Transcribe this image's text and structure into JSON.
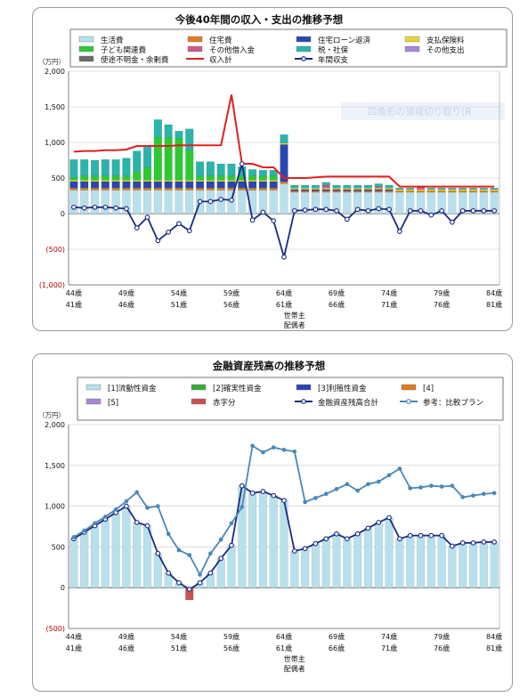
{
  "chart_data": [
    {
      "type": "bar",
      "title": "今後40年間の収入・支出の推移予想",
      "ylabel": "（万円）",
      "ylim": [
        -1000,
        2000
      ],
      "yticks": [
        "2,000",
        "1,500",
        "1,000",
        "500",
        "0",
        "(500)",
        "(1,000)"
      ],
      "yticks_values": [
        2000,
        1500,
        1000,
        500,
        0,
        -500,
        -1000
      ],
      "x_labels_top": [
        "44歳",
        "49歳",
        "54歳",
        "59歳",
        "64歳",
        "69歳",
        "74歳",
        "79歳",
        "84歳"
      ],
      "x_labels_bottom": [
        "41歳",
        "46歳",
        "51歳",
        "56歳",
        "61歳",
        "66歳",
        "71歳",
        "76歳",
        "81歳"
      ],
      "x_caption": [
        "世帯主",
        "配偶者"
      ],
      "watermark": "四角形の領域切り取り(R",
      "categories": [
        "44歳",
        "45歳",
        "46歳",
        "47歳",
        "48歳",
        "49歳",
        "50歳",
        "51歳",
        "52歳",
        "53歳",
        "54歳",
        "55歳",
        "56歳",
        "57歳",
        "58歳",
        "59歳",
        "60歳",
        "61歳",
        "62歳",
        "63歳",
        "64歳",
        "65歳",
        "66歳",
        "67歳",
        "68歳",
        "69歳",
        "70歳",
        "71歳",
        "72歳",
        "73歳",
        "74歳",
        "75歳",
        "76歳",
        "77歳",
        "78歳",
        "79歳",
        "80歳",
        "81歳",
        "82歳",
        "83歳",
        "84歳"
      ],
      "legend": [
        {
          "name": "生活費",
          "color": "#b8e0ec"
        },
        {
          "name": "住宅費",
          "color": "#e07b22"
        },
        {
          "name": "住宅ローン返済",
          "color": "#2846b4"
        },
        {
          "name": "支払保険料",
          "color": "#e8d438"
        },
        {
          "name": "子ども関連費",
          "color": "#2ec832"
        },
        {
          "name": "その他借入金",
          "color": "#c85a8c"
        },
        {
          "name": "税・社保",
          "color": "#2ab4aa"
        },
        {
          "name": "その他支出",
          "color": "#a586d8"
        },
        {
          "name": "使途不明金・余剰費",
          "color": "#6a6a6a"
        },
        {
          "name": "収入計",
          "color": "#e02020"
        },
        {
          "name": "年間収支",
          "color": "#1a2a80"
        }
      ],
      "series": [
        {
          "name": "生活費",
          "values": [
            330,
            330,
            330,
            330,
            330,
            330,
            330,
            330,
            330,
            330,
            330,
            330,
            330,
            330,
            330,
            330,
            330,
            330,
            330,
            330,
            420,
            300,
            300,
            300,
            300,
            300,
            300,
            300,
            300,
            300,
            300,
            300,
            300,
            300,
            300,
            300,
            300,
            300,
            300,
            300,
            300
          ]
        },
        {
          "name": "住宅費",
          "values": [
            30,
            30,
            30,
            30,
            30,
            30,
            30,
            30,
            30,
            30,
            30,
            30,
            30,
            30,
            30,
            30,
            30,
            30,
            30,
            30,
            30,
            20,
            20,
            20,
            20,
            20,
            20,
            20,
            20,
            20,
            20,
            20,
            20,
            20,
            20,
            20,
            20,
            20,
            20,
            20,
            20
          ]
        },
        {
          "name": "住宅ローン返済",
          "values": [
            90,
            90,
            90,
            90,
            90,
            90,
            90,
            90,
            90,
            90,
            90,
            90,
            90,
            90,
            90,
            90,
            90,
            90,
            90,
            90,
            520,
            20,
            20,
            20,
            20,
            20,
            20,
            20,
            20,
            20,
            20,
            0,
            0,
            0,
            0,
            0,
            0,
            0,
            0,
            0,
            0
          ]
        },
        {
          "name": "支払保険料",
          "values": [
            20,
            20,
            20,
            20,
            20,
            20,
            20,
            20,
            20,
            20,
            20,
            20,
            20,
            20,
            20,
            20,
            20,
            20,
            20,
            20,
            20,
            20,
            20,
            20,
            20,
            20,
            20,
            20,
            20,
            20,
            20,
            20,
            20,
            20,
            20,
            20,
            20,
            20,
            20,
            20,
            20
          ]
        },
        {
          "name": "子ども関連費",
          "values": [
            40,
            60,
            60,
            60,
            60,
            60,
            120,
            180,
            600,
            600,
            580,
            420,
            60,
            60,
            60,
            60,
            60,
            60,
            60,
            60,
            0,
            0,
            0,
            0,
            0,
            0,
            0,
            0,
            0,
            0,
            0,
            0,
            0,
            0,
            0,
            0,
            0,
            0,
            0,
            0,
            0
          ]
        },
        {
          "name": "その他借入金",
          "values": [
            0,
            0,
            0,
            0,
            0,
            0,
            0,
            0,
            0,
            0,
            0,
            0,
            0,
            0,
            0,
            0,
            0,
            0,
            0,
            0,
            0,
            0,
            0,
            0,
            40,
            0,
            0,
            0,
            0,
            20,
            0,
            0,
            0,
            30,
            0,
            0,
            0,
            0,
            0,
            0,
            0
          ]
        },
        {
          "name": "税・社保",
          "values": [
            250,
            230,
            220,
            230,
            230,
            250,
            290,
            300,
            250,
            180,
            110,
            300,
            200,
            200,
            170,
            170,
            130,
            90,
            80,
            80,
            120,
            40,
            40,
            40,
            40,
            40,
            40,
            40,
            40,
            40,
            40,
            20,
            20,
            20,
            20,
            20,
            20,
            20,
            20,
            20,
            20
          ]
        },
        {
          "name": "その他支出",
          "values": [
            0,
            0,
            0,
            0,
            0,
            0,
            0,
            0,
            0,
            0,
            0,
            0,
            0,
            0,
            0,
            0,
            0,
            0,
            0,
            0,
            0,
            0,
            0,
            0,
            0,
            0,
            0,
            0,
            0,
            0,
            0,
            0,
            0,
            0,
            0,
            0,
            0,
            0,
            0,
            0,
            0
          ]
        },
        {
          "name": "使途不明金・余剰費",
          "values": [
            0,
            0,
            0,
            0,
            0,
            0,
            0,
            0,
            0,
            0,
            0,
            0,
            0,
            0,
            0,
            0,
            0,
            0,
            0,
            0,
            0,
            0,
            0,
            0,
            0,
            0,
            0,
            0,
            0,
            0,
            0,
            0,
            0,
            0,
            0,
            0,
            0,
            0,
            0,
            0,
            0
          ]
        },
        {
          "name": "収入計",
          "kind": "line",
          "values": [
            870,
            880,
            880,
            890,
            890,
            900,
            950,
            950,
            950,
            950,
            960,
            960,
            960,
            960,
            960,
            1670,
            700,
            700,
            650,
            650,
            500,
            500,
            500,
            510,
            520,
            520,
            520,
            520,
            520,
            520,
            520,
            380,
            380,
            380,
            380,
            380,
            380,
            380,
            380,
            380,
            380
          ]
        },
        {
          "name": "年間収支",
          "kind": "line",
          "values": [
            90,
            80,
            90,
            90,
            80,
            70,
            -200,
            -50,
            -380,
            -260,
            -140,
            -240,
            170,
            170,
            200,
            190,
            700,
            -90,
            20,
            -100,
            -610,
            40,
            50,
            60,
            60,
            40,
            -80,
            60,
            40,
            70,
            60,
            -250,
            40,
            40,
            -20,
            40,
            -120,
            40,
            40,
            40,
            40
          ]
        }
      ]
    },
    {
      "type": "bar",
      "title": "金融資産残高の推移予想",
      "ylabel": "（万円）",
      "ylim": [
        -500,
        2000
      ],
      "yticks": [
        "2,000",
        "1,500",
        "1,000",
        "500",
        "0",
        "(500)"
      ],
      "yticks_values": [
        2000,
        1500,
        1000,
        500,
        0,
        -500
      ],
      "x_labels_top": [
        "44歳",
        "49歳",
        "54歳",
        "59歳",
        "64歳",
        "69歳",
        "74歳",
        "79歳",
        "84歳"
      ],
      "x_labels_bottom": [
        "41歳",
        "46歳",
        "51歳",
        "56歳",
        "61歳",
        "66歳",
        "71歳",
        "76歳",
        "81歳"
      ],
      "x_caption": [
        "世帯主",
        "配偶者"
      ],
      "categories": [
        "44歳",
        "45歳",
        "46歳",
        "47歳",
        "48歳",
        "49歳",
        "50歳",
        "51歳",
        "52歳",
        "53歳",
        "54歳",
        "55歳",
        "56歳",
        "57歳",
        "58歳",
        "59歳",
        "60歳",
        "61歳",
        "62歳",
        "63歳",
        "64歳",
        "65歳",
        "66歳",
        "67歳",
        "68歳",
        "69歳",
        "70歳",
        "71歳",
        "72歳",
        "73歳",
        "74歳",
        "75歳",
        "76歳",
        "77歳",
        "78歳",
        "79歳",
        "80歳",
        "81歳",
        "82歳",
        "83歳",
        "84歳"
      ],
      "legend": [
        {
          "name": "[1]流動性資金",
          "color": "#b8e0ec"
        },
        {
          "name": "[2]確実性資金",
          "color": "#3aaa3a"
        },
        {
          "name": "[3]利殖性資金",
          "color": "#2846b4"
        },
        {
          "name": "[4]",
          "color": "#e07b22"
        },
        {
          "name": "[5]",
          "color": "#a586d8"
        },
        {
          "name": "赤字分",
          "color": "#c85050"
        },
        {
          "name": "金融資産残高合計",
          "color": "#1a2a80"
        },
        {
          "name": "参考：比較プラン",
          "color": "#4a88b8"
        }
      ],
      "series": [
        {
          "name": "[1]流動性資金",
          "values": [
            600,
            680,
            760,
            840,
            920,
            1000,
            800,
            760,
            420,
            180,
            60,
            0,
            60,
            180,
            360,
            520,
            1250,
            1160,
            1180,
            1130,
            1070,
            450,
            480,
            540,
            600,
            660,
            600,
            660,
            730,
            800,
            860,
            600,
            640,
            640,
            640,
            640,
            510,
            550,
            550,
            560,
            560
          ]
        },
        {
          "name": "赤字分",
          "values": [
            0,
            0,
            0,
            0,
            0,
            0,
            0,
            0,
            0,
            0,
            0,
            -150,
            0,
            0,
            0,
            0,
            0,
            0,
            0,
            0,
            0,
            0,
            0,
            0,
            0,
            0,
            0,
            0,
            0,
            0,
            0,
            0,
            0,
            0,
            0,
            0,
            0,
            0,
            0,
            0,
            0
          ]
        },
        {
          "name": "金融資産残高合計",
          "kind": "line",
          "values": [
            600,
            680,
            760,
            840,
            920,
            1000,
            800,
            760,
            420,
            180,
            60,
            -20,
            60,
            180,
            360,
            520,
            1250,
            1160,
            1180,
            1130,
            1070,
            450,
            480,
            540,
            600,
            660,
            600,
            660,
            730,
            800,
            860,
            600,
            640,
            640,
            640,
            640,
            510,
            550,
            550,
            560,
            560
          ]
        },
        {
          "name": "参考：比較プラン",
          "kind": "line",
          "values": [
            620,
            700,
            790,
            870,
            960,
            1060,
            1170,
            980,
            1000,
            660,
            460,
            400,
            160,
            420,
            590,
            790,
            990,
            1740,
            1660,
            1720,
            1690,
            1670,
            1050,
            1100,
            1150,
            1210,
            1270,
            1190,
            1270,
            1300,
            1380,
            1460,
            1220,
            1230,
            1250,
            1240,
            1250,
            1110,
            1130,
            1150,
            1160
          ]
        }
      ]
    }
  ]
}
